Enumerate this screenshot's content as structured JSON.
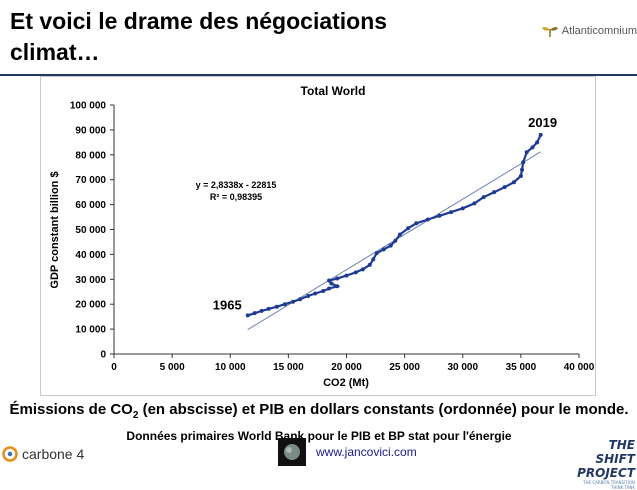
{
  "slide": {
    "title_line1": "Et voici le drame des négociations",
    "title_line2": "climat…"
  },
  "brand_top_right": {
    "name": "Atlanticomnium",
    "icon": "plant-icon"
  },
  "chart_data": {
    "type": "scatter",
    "title": "Total World",
    "xlabel": "CO2 (Mt)",
    "ylabel": "GDP constant billion $",
    "xlim": [
      0,
      40000
    ],
    "ylim": [
      0,
      100000
    ],
    "x_ticks": [
      0,
      5000,
      10000,
      15000,
      20000,
      25000,
      30000,
      35000,
      40000
    ],
    "y_ticks": [
      0,
      10000,
      20000,
      30000,
      40000,
      50000,
      60000,
      70000,
      80000,
      90000,
      100000
    ],
    "x_tick_labels": [
      "0",
      "5 000",
      "10 000",
      "15 000",
      "20 000",
      "25 000",
      "30 000",
      "35 000",
      "40 000"
    ],
    "y_tick_labels": [
      "0",
      "10 000",
      "20 000",
      "30 000",
      "40 000",
      "50 000",
      "60 000",
      "70 000",
      "80 000",
      "90 000",
      "100 000"
    ],
    "grid": false,
    "trendline": {
      "equation": "y = 2,8338x - 22815",
      "r2": "R² = 0,98395",
      "slope": 2.8338,
      "intercept": -22815,
      "x_range": [
        11500,
        36700
      ]
    },
    "annotations": [
      {
        "text": "1965",
        "x": 11500,
        "y": 15500
      },
      {
        "text": "2019",
        "x": 36700,
        "y": 88000
      }
    ],
    "series": [
      {
        "color": "#1f3a93",
        "points": [
          [
            11500,
            15500
          ],
          [
            12100,
            16400
          ],
          [
            12700,
            17300
          ],
          [
            13300,
            18100
          ],
          [
            14000,
            19000
          ],
          [
            14700,
            20000
          ],
          [
            15400,
            21000
          ],
          [
            16000,
            22000
          ],
          [
            16700,
            23300
          ],
          [
            17300,
            24300
          ],
          [
            18000,
            25300
          ],
          [
            18500,
            26300
          ],
          [
            19200,
            27200
          ],
          [
            18700,
            28300
          ],
          [
            18500,
            29500
          ],
          [
            19200,
            30300
          ],
          [
            20000,
            31500
          ],
          [
            20800,
            32800
          ],
          [
            21400,
            34000
          ],
          [
            22000,
            35800
          ],
          [
            22300,
            38000
          ],
          [
            22600,
            40500
          ],
          [
            23200,
            42000
          ],
          [
            23800,
            43500
          ],
          [
            24200,
            45500
          ],
          [
            24600,
            48000
          ],
          [
            25300,
            50500
          ],
          [
            26000,
            52500
          ],
          [
            27000,
            54000
          ],
          [
            28000,
            55500
          ],
          [
            29000,
            57000
          ],
          [
            30000,
            58500
          ],
          [
            31000,
            60500
          ],
          [
            31800,
            63000
          ],
          [
            32700,
            65000
          ],
          [
            33600,
            67000
          ],
          [
            34400,
            69000
          ],
          [
            35000,
            71500
          ],
          [
            35100,
            74000
          ],
          [
            35200,
            77000
          ],
          [
            35500,
            81000
          ],
          [
            36000,
            83000
          ],
          [
            36400,
            85000
          ],
          [
            36700,
            88000
          ]
        ]
      }
    ]
  },
  "caption": {
    "main_part1": "Émissions de CO",
    "main_sub": "2",
    "main_part2": " (en abscisse) et PIB en dollars constants (ordonnée) pour le monde.",
    "small": " Données primaires World Bank pour le PIB et BP stat pour l'énergie"
  },
  "footer": {
    "left_brand": "carbone 4",
    "url": "www.jancovici.com",
    "right_brand_line1": "THE SHIFT",
    "right_brand_line2": "PROJECT",
    "right_brand_tagline": "THE CARBON TRANSITION THINK TANK"
  }
}
